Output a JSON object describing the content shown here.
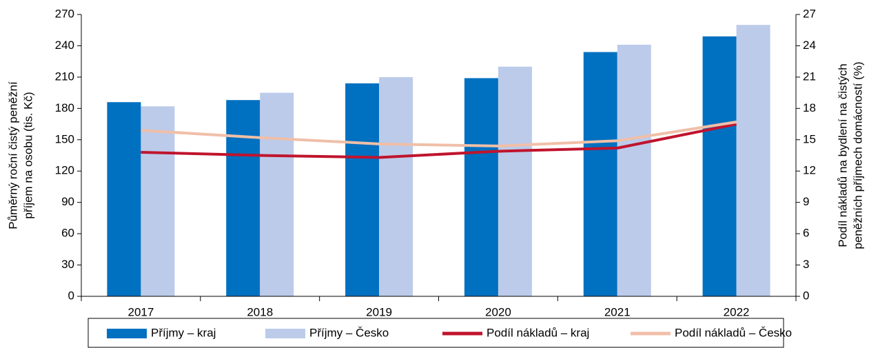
{
  "chart_data": {
    "type": "bar_line",
    "ylabel": [
      "Půměrný roční čistý peněžní",
      "příjem na osobu (tis. Kč)"
    ],
    "y2label": [
      "Podíl nákladů na bydlení na čistých",
      "peněžních příjmech domácností (%)"
    ],
    "categories": [
      "2017",
      "2018",
      "2019",
      "2020",
      "2021",
      "2022"
    ],
    "series": [
      {
        "name": "Příjmy – kraj",
        "type": "bar",
        "color": "#0070c0",
        "values": [
          186,
          188,
          204,
          209,
          234,
          249
        ]
      },
      {
        "name": "Příjmy – Česko",
        "type": "bar",
        "color": "#bccbea",
        "values": [
          182,
          195,
          210,
          220,
          241,
          260
        ]
      },
      {
        "name": "Podíl nákladů – kraj",
        "type": "line",
        "axis": "y2",
        "color": "#c0142d",
        "values": [
          13.8,
          13.5,
          13.3,
          13.9,
          14.2,
          16.5
        ]
      },
      {
        "name": "Podíl nákladů – Česko",
        "type": "line",
        "axis": "y2",
        "color": "#f0bfa8",
        "values": [
          15.9,
          15.2,
          14.6,
          14.4,
          14.9,
          16.7
        ]
      }
    ],
    "ylim": [
      0,
      270
    ],
    "yticks": [
      0,
      30,
      60,
      90,
      120,
      150,
      180,
      210,
      240,
      270
    ],
    "y2lim": [
      0,
      27
    ],
    "y2ticks": [
      0,
      3,
      6,
      9,
      12,
      15,
      18,
      21,
      24,
      27
    ],
    "legend": "bottom"
  }
}
